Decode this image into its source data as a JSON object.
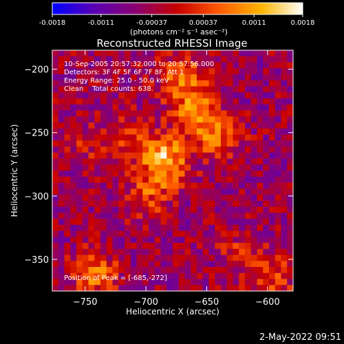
{
  "colorbar": {
    "tick_labels": [
      "-0.0018",
      "-0.0011",
      "-0.00037",
      "0.00037",
      "0.0011",
      "0.0018"
    ],
    "tick_values": [
      -0.0018,
      -0.0011,
      -0.00037,
      0.00037,
      0.0011,
      0.0018
    ],
    "range": [
      -0.0018,
      0.0018
    ],
    "units_text": "(photons cm⁻² s⁻¹ asec⁻²)",
    "colormap": [
      "#0000ff",
      "#5a00b4",
      "#8a0070",
      "#c80000",
      "#ff5a00",
      "#ffb400",
      "#ffffff"
    ]
  },
  "plot": {
    "title": "Reconstructed RHESSI Image",
    "xlabel": "Heliocentric X (arcsec)",
    "ylabel": "Heliocentric Y (arcsec)",
    "xlim": [
      -777,
      -579
    ],
    "ylim": [
      -375,
      -185
    ],
    "x_ticks": [
      -750,
      -700,
      -650,
      -600
    ],
    "y_ticks": [
      -200,
      -250,
      -300,
      -350
    ],
    "x_tick_labels": [
      "−750",
      "−700",
      "−650",
      "−600"
    ],
    "y_tick_labels": [
      "−200",
      "−250",
      "−300",
      "−350"
    ],
    "annotations": {
      "time_range": "10-Sep-2005 20:57:32.000 to 20:57:56.000",
      "detectors": "Detectors: 3F 4F 5F 6F 7F 8F, Att 1",
      "energy_range": "Energy Range: 25.0 - 50.0 keV",
      "clean_counts": "Clean    Total counts: 638.",
      "peak": "Position of Peak = [-685,-272]"
    },
    "peak": {
      "x": -685,
      "y": -272
    }
  },
  "footer": {
    "timestamp": "2-May-2022 09:51"
  },
  "chart_data": {
    "type": "heatmap",
    "title": "Reconstructed RHESSI Image",
    "xlabel": "Heliocentric X (arcsec)",
    "ylabel": "Heliocentric Y (arcsec)",
    "xlim": [
      -777,
      -579
    ],
    "ylim": [
      -375,
      -185
    ],
    "value_range": [
      -0.0018,
      0.0018
    ],
    "peak": [
      -685,
      -272
    ],
    "sources": [
      {
        "x": -685,
        "y": -272,
        "amplitude": 0.0018
      },
      {
        "x": -660,
        "y": -235,
        "amplitude": 0.0013
      },
      {
        "x": -670,
        "y": -205,
        "amplitude": 0.0011
      },
      {
        "x": -640,
        "y": -255,
        "amplitude": 0.0009
      },
      {
        "x": -700,
        "y": -300,
        "amplitude": 0.0008
      },
      {
        "x": -715,
        "y": -250,
        "amplitude": 0.0006
      },
      {
        "x": -742,
        "y": -362,
        "amplitude": 0.0011
      },
      {
        "x": -597,
        "y": -365,
        "amplitude": 0.0008
      },
      {
        "x": -622,
        "y": -345,
        "amplitude": 0.0005
      },
      {
        "x": -750,
        "y": -260,
        "amplitude": 0.0004
      }
    ]
  }
}
